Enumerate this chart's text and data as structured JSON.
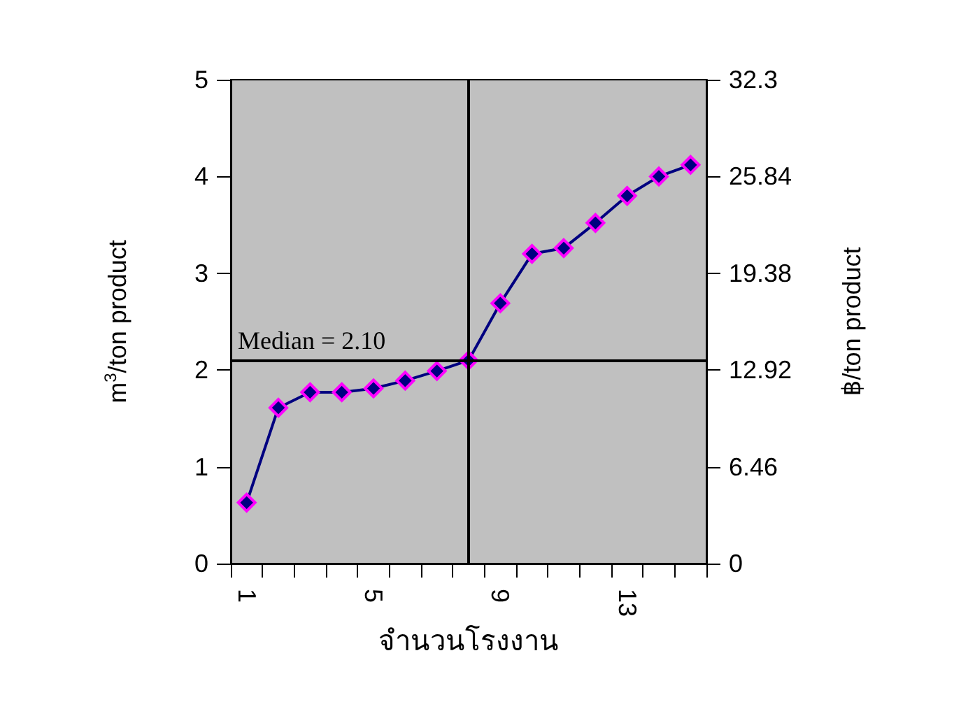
{
  "chart_data": {
    "type": "line",
    "xlabel": "จำนวนโรงงาน",
    "ylabel": "m$^{3}$/ton product",
    "y2label": "฿/ton product",
    "x": [
      1,
      2,
      3,
      4,
      5,
      6,
      7,
      8,
      9,
      10,
      11,
      12,
      13,
      14,
      15
    ],
    "series": [
      {
        "color": "#000080",
        "values": [
          0.63,
          1.61,
          1.77,
          1.77,
          1.81,
          1.89,
          1.99,
          2.1,
          2.69,
          3.2,
          3.26,
          3.52,
          3.8,
          4.0,
          4.12
        ]
      }
    ],
    "xlim": [
      0.5,
      15.5
    ],
    "xticks": [
      {
        "value": 0.5,
        "label": null
      },
      1,
      {
        "value": 1.5,
        "label": null
      },
      {
        "value": 2.5,
        "label": null
      },
      {
        "value": 3.5,
        "label": null
      },
      {
        "value": 4.5,
        "label": null
      },
      5,
      {
        "value": 5.5,
        "label": null
      },
      {
        "value": 6.5,
        "label": null
      },
      {
        "value": 7.5,
        "label": null
      },
      {
        "value": 8.5,
        "label": null
      },
      9,
      {
        "value": 9.5,
        "label": null
      },
      {
        "value": 10.5,
        "label": null
      },
      {
        "value": 11.5,
        "label": null
      },
      {
        "value": 12.5,
        "label": null
      },
      13,
      {
        "value": 13.5,
        "label": null
      },
      {
        "value": 14.5,
        "label": null
      },
      {
        "value": 15.5,
        "label": null
      }
    ],
    "ylim": [
      0,
      5
    ],
    "yticks": [
      0,
      1,
      2,
      3,
      4,
      5
    ],
    "y2lim": [
      0,
      32.3
    ],
    "y2ticks": [
      0,
      6.46,
      12.92,
      19.38,
      25.84,
      32.3
    ],
    "ref_lines": [
      {
        "axis": "x",
        "value": 8,
        "color": "#000000"
      },
      {
        "axis": "y",
        "value": 2.1,
        "label": "Median = 2.10",
        "color": "#000000"
      }
    ],
    "marker": "diamond",
    "line_style": "solid",
    "grid": false
  }
}
